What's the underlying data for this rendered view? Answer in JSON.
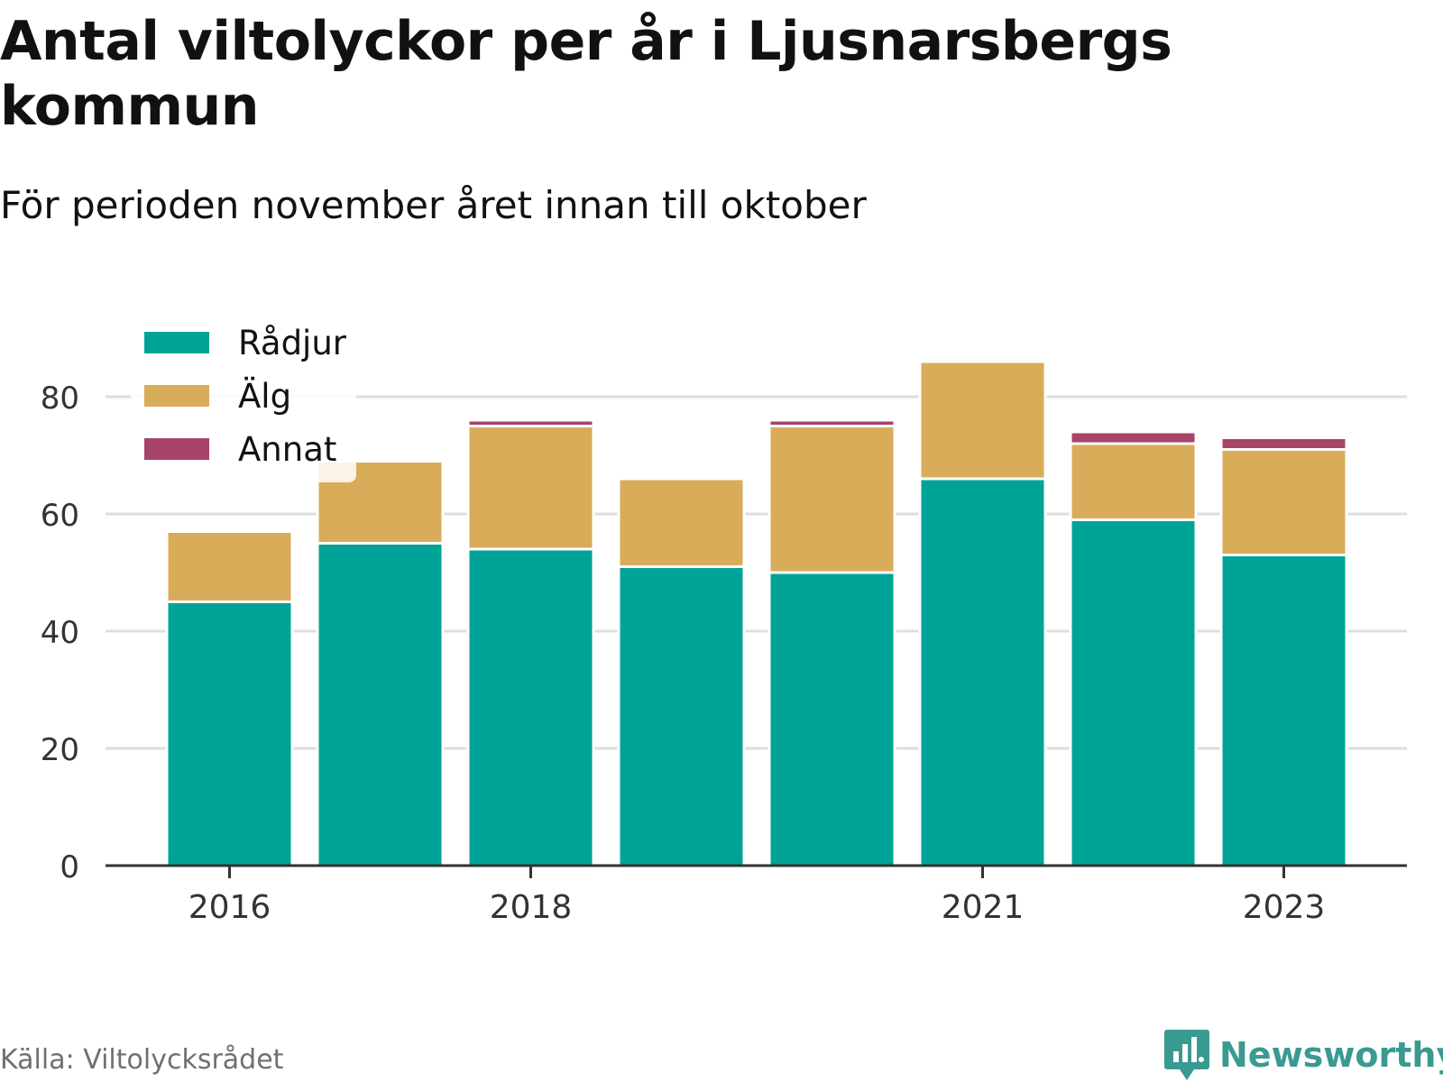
{
  "header": {
    "title": "Antal viltolyckor per år i Ljusnarsbergs kommun",
    "subtitle": "För perioden november året innan till oktober"
  },
  "footer": {
    "source": "Källa: Viltolycksrådet",
    "brand": "Newsworthy",
    "brand_icon": "chart-bubble-icon"
  },
  "colors": {
    "radjur": "#00A398",
    "alg": "#D9AC5A",
    "annat": "#A7446A",
    "brand": "#3A9A92"
  },
  "chart_data": {
    "type": "bar",
    "stacked": true,
    "title": "Antal viltolyckor per år i Ljusnarsbergs kommun",
    "subtitle": "För perioden november året innan till oktober",
    "categories": [
      "2016",
      "2017",
      "2018",
      "2019",
      "2020",
      "2021",
      "2022",
      "2023"
    ],
    "x_tick_labels": [
      "2016",
      "2018",
      "2021",
      "2023"
    ],
    "y_ticks": [
      0,
      20,
      40,
      60,
      80
    ],
    "ylim": [
      0,
      90
    ],
    "grid": true,
    "legend_position": "top-left",
    "series": [
      {
        "name": "Rådjur",
        "color": "#00A398",
        "values": [
          45,
          55,
          54,
          51,
          50,
          66,
          59,
          53
        ]
      },
      {
        "name": "Älg",
        "color": "#D9AC5A",
        "values": [
          12,
          14,
          21,
          15,
          25,
          20,
          13,
          18
        ]
      },
      {
        "name": "Annat",
        "color": "#A7446A",
        "values": [
          0,
          0,
          1,
          0,
          1,
          0,
          2,
          2
        ]
      }
    ]
  }
}
